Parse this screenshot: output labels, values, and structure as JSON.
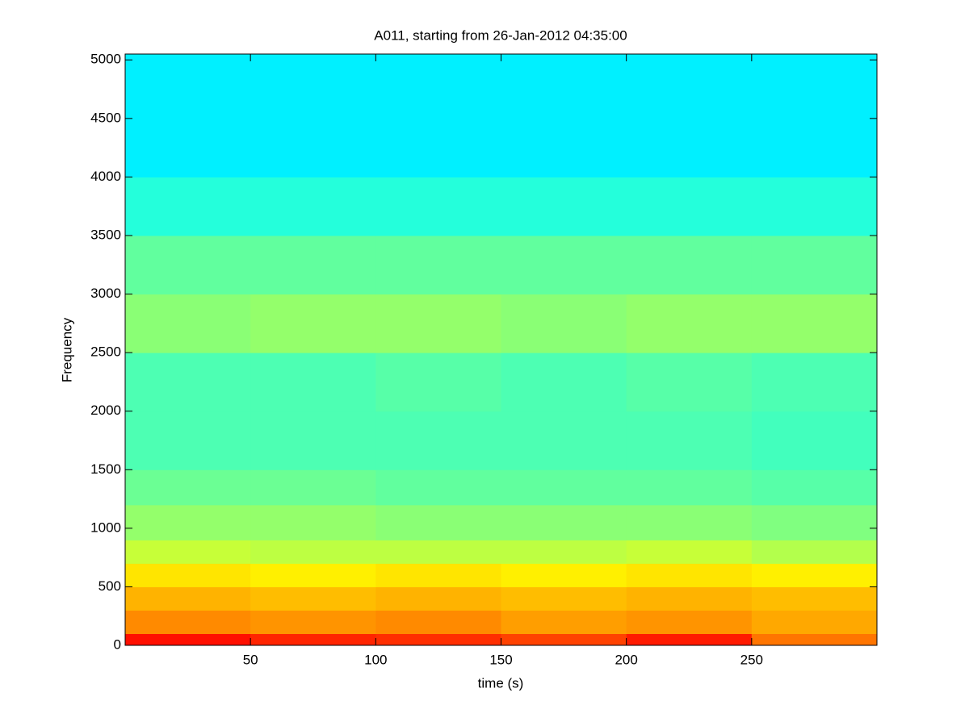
{
  "chart_data": {
    "type": "heatmap",
    "title": "A011, starting from 26-Jan-2012 04:35:00",
    "xlabel": "time (s)",
    "ylabel": "Frequency",
    "xlim": [
      0,
      300
    ],
    "ylim": [
      0,
      5050
    ],
    "xticks": [
      50,
      100,
      150,
      200,
      250
    ],
    "yticks": [
      0,
      500,
      1000,
      1500,
      2000,
      2500,
      3000,
      3500,
      4000,
      4500,
      5000
    ],
    "colormap": "jet",
    "x_edges": [
      0,
      50,
      100,
      150,
      200,
      250,
      300
    ],
    "y_edges": [
      0,
      100,
      300,
      500,
      700,
      900,
      1200,
      1500,
      2000,
      2500,
      3000,
      3500,
      4000,
      5050
    ],
    "z": [
      [
        0.86,
        0.84,
        0.83,
        0.81,
        0.85,
        0.76
      ],
      [
        0.74,
        0.73,
        0.74,
        0.72,
        0.73,
        0.71
      ],
      [
        0.7,
        0.69,
        0.7,
        0.69,
        0.7,
        0.69
      ],
      [
        0.65,
        0.64,
        0.65,
        0.64,
        0.65,
        0.64
      ],
      [
        0.57,
        0.56,
        0.56,
        0.56,
        0.57,
        0.55
      ],
      [
        0.52,
        0.52,
        0.51,
        0.51,
        0.51,
        0.5
      ],
      [
        0.48,
        0.48,
        0.47,
        0.47,
        0.47,
        0.46
      ],
      [
        0.45,
        0.45,
        0.45,
        0.45,
        0.45,
        0.44
      ],
      [
        0.45,
        0.45,
        0.46,
        0.45,
        0.46,
        0.45
      ],
      [
        0.51,
        0.52,
        0.52,
        0.51,
        0.52,
        0.52
      ],
      [
        0.47,
        0.47,
        0.47,
        0.47,
        0.47,
        0.47
      ],
      [
        0.41,
        0.41,
        0.41,
        0.41,
        0.41,
        0.41
      ],
      [
        0.36,
        0.36,
        0.36,
        0.36,
        0.36,
        0.36
      ]
    ]
  }
}
